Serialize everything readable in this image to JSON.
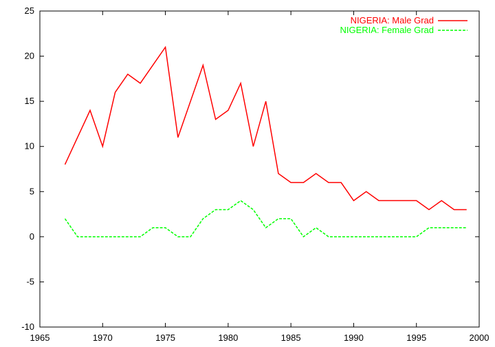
{
  "chart_data": {
    "type": "line",
    "title": "",
    "xlabel": "",
    "ylabel": "",
    "xlim": [
      1965,
      2000
    ],
    "ylim": [
      -10,
      25
    ],
    "xticks": [
      1965,
      1970,
      1975,
      1980,
      1985,
      1990,
      1995,
      2000
    ],
    "yticks": [
      -10,
      -5,
      0,
      5,
      10,
      15,
      20,
      25
    ],
    "grid": false,
    "legend_position": "top-right",
    "x": [
      1967,
      1968,
      1969,
      1970,
      1971,
      1972,
      1973,
      1974,
      1975,
      1976,
      1977,
      1978,
      1979,
      1980,
      1981,
      1982,
      1983,
      1984,
      1985,
      1986,
      1987,
      1988,
      1989,
      1990,
      1991,
      1992,
      1993,
      1994,
      1995,
      1996,
      1997,
      1998,
      1999
    ],
    "series": [
      {
        "name": "NIGERIA: Male Grad",
        "color": "#ff0000",
        "dash": "solid",
        "values": [
          8,
          11,
          14,
          10,
          16,
          18,
          17,
          19,
          21,
          11,
          15,
          19,
          13,
          14,
          17,
          10,
          15,
          7,
          6,
          6,
          7,
          6,
          6,
          4,
          5,
          4,
          4,
          4,
          4,
          3,
          4,
          3,
          3
        ]
      },
      {
        "name": "NIGERIA: Female Grad",
        "color": "#00ff00",
        "dash": "dashed",
        "values": [
          2,
          0,
          0,
          0,
          0,
          0,
          0,
          1,
          1,
          0,
          0,
          2,
          3,
          3,
          4,
          3,
          1,
          2,
          2,
          0,
          1,
          0,
          0,
          0,
          0,
          0,
          0,
          0,
          0,
          1,
          1,
          1,
          1
        ]
      }
    ]
  }
}
